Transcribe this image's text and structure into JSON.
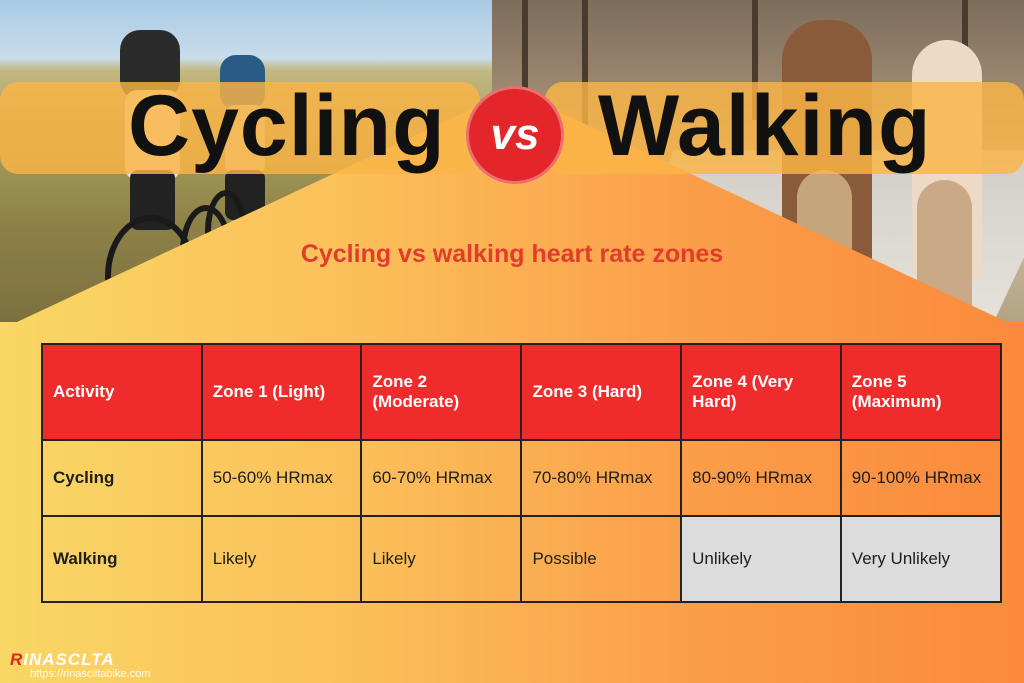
{
  "title_left": "Cycling",
  "vs_label": "vs",
  "title_right": "Walking",
  "subtitle": "Cycling vs walking heart rate zones",
  "table": {
    "headers": [
      "Activity",
      "Zone 1 (Light)",
      "Zone 2 (Moderate)",
      "Zone 3 (Hard)",
      "Zone 4 (Very Hard)",
      "Zone 5 (Maximum)"
    ],
    "rows": [
      [
        "Cycling",
        "50-60% HRmax",
        "60-70% HRmax",
        "70-80% HRmax",
        "80-90% HRmax",
        "90-100% HRmax"
      ],
      [
        "Walking",
        "Likely",
        "Likely",
        "Possible",
        "Unlikely",
        "Very Unlikely"
      ]
    ]
  },
  "brand": {
    "logo_first": "R",
    "logo_rest": "INASCLTA",
    "url": "https://rinasclitabike.com"
  },
  "colors": {
    "accent_red": "#ef2b2b",
    "subtitle_red": "#e23c2e",
    "unlikely_grey": "#dcdcdc"
  }
}
